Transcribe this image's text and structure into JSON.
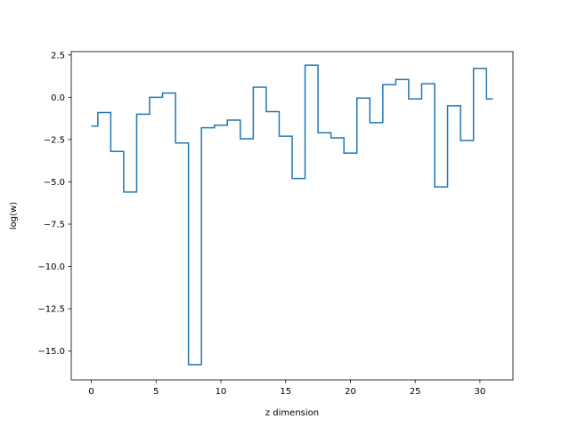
{
  "chart_data": {
    "type": "line",
    "drawstyle": "steps-mid",
    "title": "",
    "xlabel": "z dimension",
    "ylabel": "log(w)",
    "xlim": [
      -1.55,
      32.55
    ],
    "ylim": [
      -16.7,
      2.7
    ],
    "xticks": [
      0,
      5,
      10,
      15,
      20,
      25,
      30
    ],
    "xtick_labels": [
      "0",
      "5",
      "10",
      "15",
      "20",
      "25",
      "30"
    ],
    "yticks": [
      2.5,
      0.0,
      -2.5,
      -5.0,
      -7.5,
      -10.0,
      -12.5,
      -15.0
    ],
    "ytick_labels": [
      "2.5",
      "0.0",
      "−2.5",
      "−5.0",
      "−7.5",
      "−10.0",
      "−12.5",
      "−15.0"
    ],
    "grid": false,
    "legend": "none",
    "color": "#1f77b4",
    "x": [
      0,
      1,
      2,
      3,
      4,
      5,
      6,
      7,
      8,
      9,
      10,
      11,
      12,
      13,
      14,
      15,
      16,
      17,
      18,
      19,
      20,
      21,
      22,
      23,
      24,
      25,
      26,
      27,
      28,
      29,
      30,
      31
    ],
    "y": [
      -1.7,
      -0.9,
      -3.2,
      -5.6,
      -1.0,
      0.0,
      0.25,
      -2.7,
      -15.8,
      -1.8,
      -1.65,
      -1.35,
      -2.45,
      0.6,
      -0.85,
      -2.3,
      -4.8,
      1.9,
      -2.1,
      -2.4,
      -3.3,
      -0.05,
      -1.5,
      0.75,
      1.05,
      -0.1,
      0.8,
      -5.3,
      -0.5,
      -2.55,
      1.7,
      -0.1
    ]
  }
}
